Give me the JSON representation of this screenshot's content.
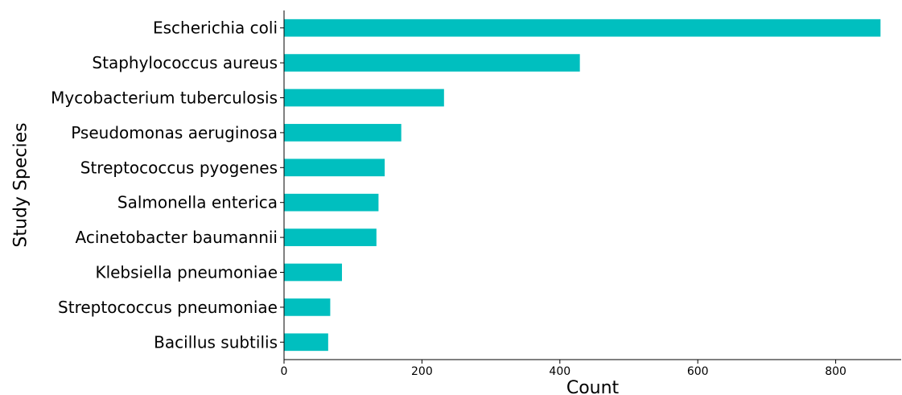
{
  "chart_data": {
    "type": "bar",
    "orientation": "horizontal",
    "categories": [
      "Escherichia coli",
      "Staphylococcus aureus",
      "Mycobacterium tuberculosis",
      "Pseudomonas aeruginosa",
      "Streptococcus pyogenes",
      "Salmonella enterica",
      "Acinetobacter baumannii",
      "Klebsiella pneumoniae",
      "Streptococcus pneumoniae",
      "Bacillus subtilis"
    ],
    "values": [
      865,
      429,
      232,
      170,
      146,
      137,
      134,
      84,
      67,
      64
    ],
    "xlabel": "Count",
    "ylabel": "Study Species",
    "xlim": [
      0,
      895
    ],
    "xticks": [
      0,
      200,
      400,
      600,
      800
    ],
    "bar_color": "#00bfbf",
    "grid": false,
    "legend": "none"
  }
}
